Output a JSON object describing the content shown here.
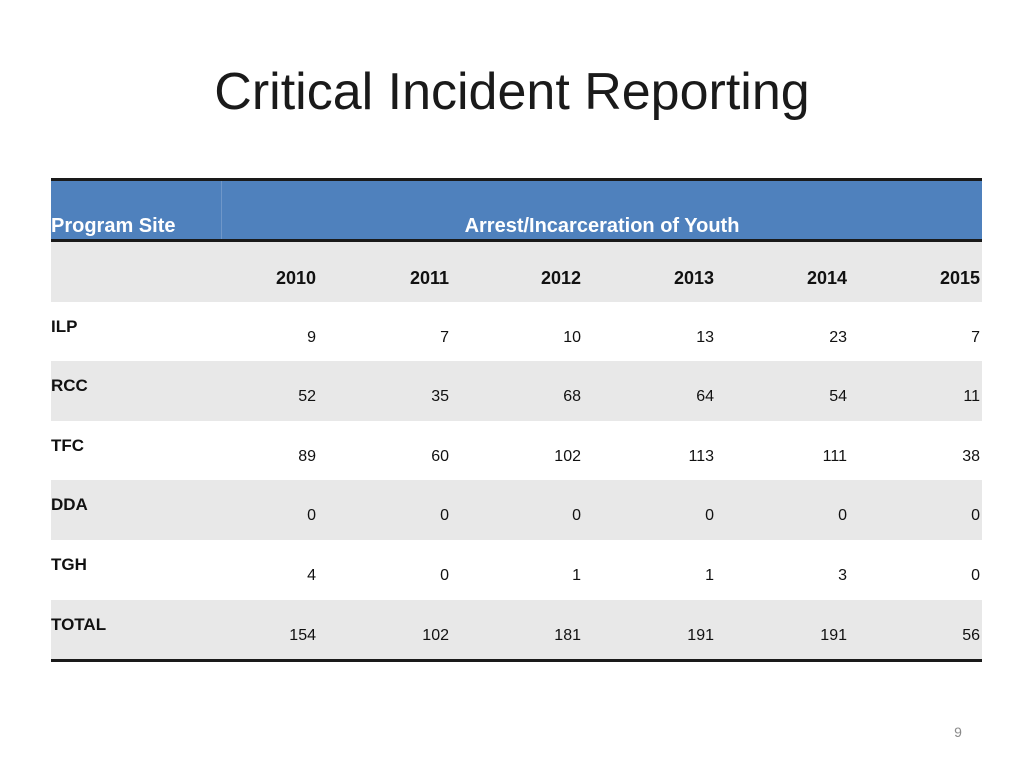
{
  "slide": {
    "title": "Critical Incident Reporting",
    "page_number": "9"
  },
  "table": {
    "header": {
      "site_label": "Program Site",
      "group_label": "Arrest/Incarceration of Youth"
    },
    "years": [
      "2010",
      "2011",
      "2012",
      "2013",
      "2014",
      "2015"
    ],
    "rows": [
      {
        "site": "ILP",
        "values": [
          "9",
          "7",
          "10",
          "13",
          "23",
          "7"
        ]
      },
      {
        "site": "RCC",
        "values": [
          "52",
          "35",
          "68",
          "64",
          "54",
          "11"
        ]
      },
      {
        "site": "TFC",
        "values": [
          "89",
          "60",
          "102",
          "113",
          "111",
          "38"
        ]
      },
      {
        "site": "DDA",
        "values": [
          "0",
          "0",
          "0",
          "0",
          "0",
          "0"
        ]
      },
      {
        "site": "TGH",
        "values": [
          "4",
          "0",
          "1",
          "1",
          "3",
          "0"
        ]
      },
      {
        "site": "TOTAL",
        "values": [
          "154",
          "102",
          "181",
          "191",
          "191",
          "56"
        ]
      }
    ]
  },
  "colors": {
    "header_bg": "#4f81bd",
    "header_text": "#ffffff",
    "shaded_row": "#e8e8e8",
    "rule": "#1a1a1a"
  }
}
